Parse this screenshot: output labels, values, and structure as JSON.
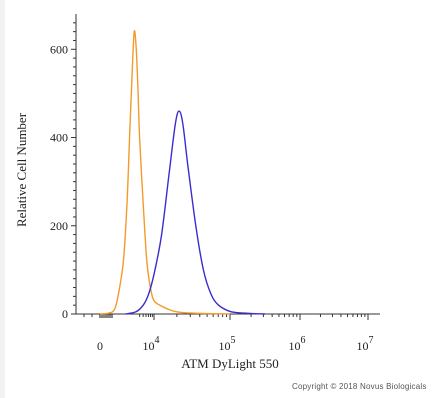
{
  "chart_data": {
    "type": "line",
    "xlabel": "ATM DyLight 550",
    "ylabel": "Relative Cell Number",
    "xscale": "biexponential",
    "x_ticks": [
      {
        "value": 0,
        "label": "0"
      },
      {
        "value": 10000,
        "base": "10",
        "exp": "4"
      },
      {
        "value": 100000,
        "base": "10",
        "exp": "5"
      },
      {
        "value": 1000000,
        "base": "10",
        "exp": "6"
      },
      {
        "value": 10000000,
        "base": "10",
        "exp": "7"
      }
    ],
    "y_ticks": [
      0,
      200,
      400,
      600
    ],
    "ylim": [
      0,
      680
    ],
    "grid": false,
    "legend": "none",
    "series": [
      {
        "color": "#F39A2B",
        "points": [
          [
            2.0,
            0
          ],
          [
            2.5,
            2
          ],
          [
            2.8,
            10
          ],
          [
            3.0,
            40
          ],
          [
            3.15,
            120
          ],
          [
            3.25,
            250
          ],
          [
            3.33,
            420
          ],
          [
            3.4,
            560
          ],
          [
            3.45,
            640
          ],
          [
            3.5,
            610
          ],
          [
            3.55,
            520
          ],
          [
            3.6,
            400
          ],
          [
            3.7,
            250
          ],
          [
            3.8,
            120
          ],
          [
            3.9,
            60
          ],
          [
            4.0,
            30
          ],
          [
            4.1,
            18
          ],
          [
            4.2,
            10
          ],
          [
            4.3,
            5
          ],
          [
            4.5,
            2
          ],
          [
            5.0,
            0
          ]
        ]
      },
      {
        "color": "#3A2CD0",
        "points": [
          [
            3.2,
            0
          ],
          [
            3.5,
            5
          ],
          [
            3.7,
            20
          ],
          [
            3.85,
            45
          ],
          [
            4.0,
            90
          ],
          [
            4.1,
            180
          ],
          [
            4.2,
            320
          ],
          [
            4.28,
            430
          ],
          [
            4.33,
            460
          ],
          [
            4.38,
            430
          ],
          [
            4.45,
            330
          ],
          [
            4.55,
            200
          ],
          [
            4.65,
            100
          ],
          [
            4.75,
            45
          ],
          [
            4.85,
            20
          ],
          [
            5.0,
            6
          ],
          [
            5.2,
            2
          ],
          [
            5.5,
            0
          ]
        ]
      }
    ]
  },
  "copyright": "Copyright © 2018 Novus Biologicals"
}
